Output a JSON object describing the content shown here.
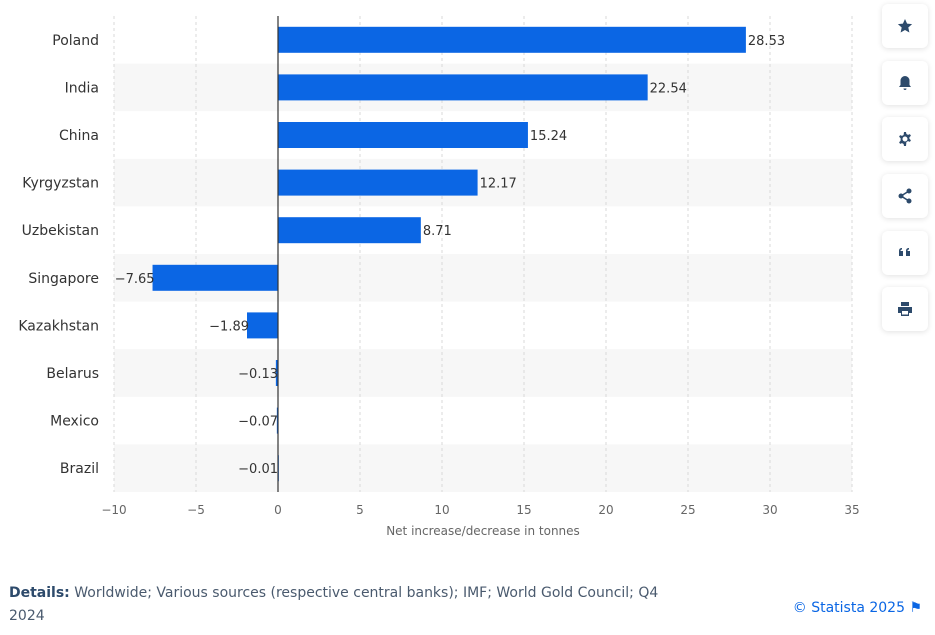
{
  "chart_data": {
    "type": "bar",
    "orientation": "horizontal",
    "categories": [
      "Poland",
      "India",
      "China",
      "Kyrgyzstan",
      "Uzbekistan",
      "Singapore",
      "Kazakhstan",
      "Belarus",
      "Mexico",
      "Brazil"
    ],
    "values": [
      28.53,
      22.54,
      15.24,
      12.17,
      8.71,
      -7.65,
      -1.89,
      -0.13,
      -0.07,
      -0.01
    ],
    "value_labels": [
      "28.53",
      "22.54",
      "15.24",
      "12.17",
      "8.71",
      "−7.65",
      "−1.89",
      "−0.13",
      "−0.07",
      "−0.01"
    ],
    "xlabel": "Net increase/decrease in tonnes",
    "xlim": [
      -10,
      35
    ],
    "xticks": [
      -10,
      -5,
      0,
      5,
      10,
      15,
      20,
      25,
      30,
      35
    ],
    "xtick_labels": [
      "−10",
      "−5",
      "0",
      "5",
      "10",
      "15",
      "20",
      "25",
      "30",
      "35"
    ],
    "grid": true,
    "bar_color": "#0b66e4"
  },
  "toolbar": [
    "star-icon",
    "bell-icon",
    "gear-icon",
    "share-icon",
    "quote-icon",
    "print-icon"
  ],
  "footer": {
    "details_label": "Details:",
    "details_text": " Worldwide; Various sources (respective central banks); IMF; World Gold Council; Q4 2024",
    "copyright": "© Statista 2025"
  }
}
